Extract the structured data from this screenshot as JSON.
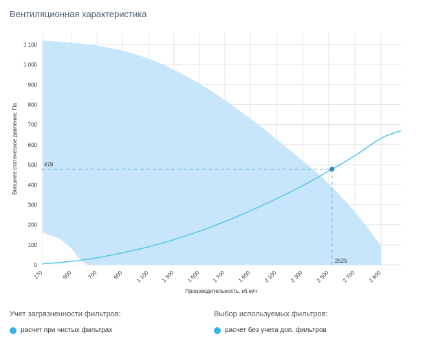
{
  "title": "Вентиляционная характеристика",
  "chart_data": {
    "type": "area",
    "title": "Вентиляционная характеристика",
    "xlabel": "Производительность, кб.м/ч",
    "ylabel": "Внешнее статическое давление, Па",
    "x_ticks": [
      "270",
      "500",
      "700",
      "900",
      "1 100",
      "1 300",
      "1 500",
      "1 700",
      "1 900",
      "2 100",
      "2 300",
      "2 500",
      "2 700",
      "2 900"
    ],
    "y_ticks": [
      "0",
      "100",
      "200",
      "300",
      "400",
      "500",
      "600",
      "700",
      "800",
      "900",
      "1 000",
      "1 100"
    ],
    "ylim": [
      0,
      1150
    ],
    "series": [
      {
        "name": "operating-range-upper",
        "x": [
          270,
          700,
          1100,
          1500,
          1900,
          2300,
          2500,
          2700,
          2900
        ],
        "y": [
          1120,
          1095,
          1030,
          905,
          730,
          520,
          405,
          265,
          95
        ]
      },
      {
        "name": "operating-range-lower",
        "x": [
          270,
          400,
          500,
          560,
          620
        ],
        "y": [
          160,
          130,
          80,
          30,
          0
        ]
      },
      {
        "name": "system-curve",
        "x": [
          270,
          500,
          700,
          900,
          1100,
          1300,
          1500,
          1700,
          1900,
          2100,
          2300,
          2525,
          2700,
          2900,
          2950
        ],
        "y": [
          5,
          17,
          35,
          60,
          90,
          126,
          168,
          216,
          270,
          330,
          395,
          478,
          545,
          632,
          670
        ]
      }
    ],
    "operating_point": {
      "x": 2525,
      "y": 478,
      "x_label": "2525",
      "y_label": "478"
    }
  },
  "legend": {
    "left_title": "Учет загрязненности фильтров:",
    "left_item": "расчет при чистых фильтрах",
    "right_title": "Выбор используемых фильтров:",
    "right_item": "расчет без учета доп. фильтров"
  },
  "colors": {
    "area": "#c8e6fb",
    "curve": "#5dc8ec",
    "point": "#2d8ab8",
    "dashed": "#5aa9d6",
    "grid": "#e3e3e3",
    "dot": "#35b2e6"
  }
}
